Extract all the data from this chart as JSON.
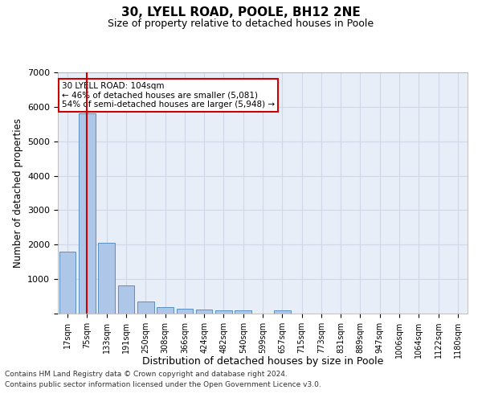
{
  "title1": "30, LYELL ROAD, POOLE, BH12 2NE",
  "title2": "Size of property relative to detached houses in Poole",
  "xlabel": "Distribution of detached houses by size in Poole",
  "ylabel": "Number of detached properties",
  "bar_labels": [
    "17sqm",
    "75sqm",
    "133sqm",
    "191sqm",
    "250sqm",
    "308sqm",
    "366sqm",
    "424sqm",
    "482sqm",
    "540sqm",
    "599sqm",
    "657sqm",
    "715sqm",
    "773sqm",
    "831sqm",
    "889sqm",
    "947sqm",
    "1006sqm",
    "1064sqm",
    "1122sqm",
    "1180sqm"
  ],
  "bar_values": [
    1800,
    5800,
    2050,
    820,
    340,
    185,
    130,
    115,
    105,
    85,
    0,
    95,
    0,
    0,
    0,
    0,
    0,
    0,
    0,
    0,
    0
  ],
  "bar_color": "#aec6e8",
  "bar_edge_color": "#5a8fc0",
  "vline_x": 1.0,
  "vline_color": "#cc0000",
  "annotation_text": "30 LYELL ROAD: 104sqm\n← 46% of detached houses are smaller (5,081)\n54% of semi-detached houses are larger (5,948) →",
  "annotation_box_color": "#ffffff",
  "annotation_box_edge": "#cc0000",
  "ylim": [
    0,
    7000
  ],
  "yticks": [
    0,
    1000,
    2000,
    3000,
    4000,
    5000,
    6000,
    7000
  ],
  "grid_color": "#d0d8e8",
  "bg_color": "#e8eef8",
  "footnote1": "Contains HM Land Registry data © Crown copyright and database right 2024.",
  "footnote2": "Contains public sector information licensed under the Open Government Licence v3.0."
}
